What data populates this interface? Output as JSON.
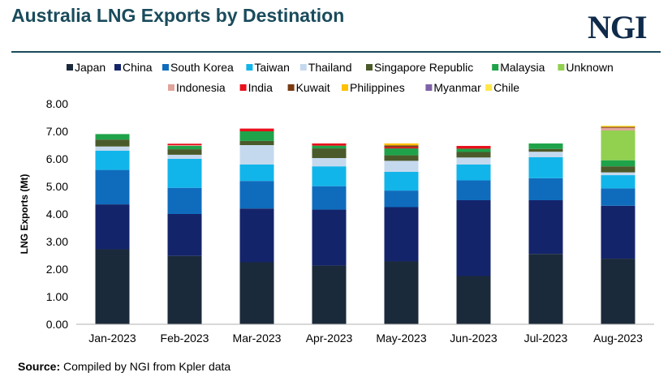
{
  "header": {
    "title": "Australia LNG Exports by Destination",
    "logo_text": "NGI"
  },
  "footer": {
    "source_label": "Source:",
    "source_text": " Compiled by NGI from Kpler data"
  },
  "chart_data": {
    "type": "bar",
    "stacked": true,
    "title": "Australia LNG Exports by Destination",
    "xlabel": "",
    "ylabel": "LNG Exports (Mt)",
    "ylim": [
      0,
      8
    ],
    "yticks": [
      "0.00",
      "1.00",
      "2.00",
      "3.00",
      "4.00",
      "5.00",
      "6.00",
      "7.00",
      "8.00"
    ],
    "grid": false,
    "legend_position": "top",
    "categories": [
      "Jan-2023",
      "Feb-2023",
      "Mar-2023",
      "Apr-2023",
      "May-2023",
      "Jun-2023",
      "Jul-2023",
      "Aug-2023"
    ],
    "series": [
      {
        "name": "Japan",
        "color": "#1b2a3a",
        "values": [
          2.72,
          2.48,
          2.25,
          2.13,
          2.28,
          1.75,
          2.55,
          2.38
        ]
      },
      {
        "name": "China",
        "color": "#14246b",
        "values": [
          1.63,
          1.52,
          1.95,
          2.03,
          1.97,
          2.75,
          1.95,
          1.92
        ]
      },
      {
        "name": "South Korea",
        "color": "#0f6cbd",
        "values": [
          1.25,
          0.95,
          1.0,
          0.85,
          0.6,
          0.72,
          0.8,
          0.63
        ]
      },
      {
        "name": "Taiwan",
        "color": "#12b5ea",
        "values": [
          0.7,
          1.05,
          0.6,
          0.72,
          0.68,
          0.58,
          0.76,
          0.48
        ]
      },
      {
        "name": "Thailand",
        "color": "#c5d9ee",
        "values": [
          0.15,
          0.15,
          0.7,
          0.3,
          0.4,
          0.25,
          0.2,
          0.1
        ]
      },
      {
        "name": "Singapore Republic",
        "color": "#4b5a2a",
        "values": [
          0.25,
          0.2,
          0.15,
          0.35,
          0.2,
          0.2,
          0.1,
          0.22
        ]
      },
      {
        "name": "Malaysia",
        "color": "#1fa34a",
        "values": [
          0.2,
          0.12,
          0.35,
          0.1,
          0.25,
          0.12,
          0.2,
          0.22
        ]
      },
      {
        "name": "Unknown",
        "color": "#92d050",
        "values": [
          0,
          0,
          0,
          0,
          0,
          0,
          0,
          1.08
        ]
      },
      {
        "name": "Indonesia",
        "color": "#e0a49c",
        "values": [
          0,
          0.03,
          0,
          0,
          0,
          0,
          0,
          0.1
        ]
      },
      {
        "name": "India",
        "color": "#e8101b",
        "values": [
          0,
          0.05,
          0.1,
          0.08,
          0.05,
          0.1,
          0,
          0
        ]
      },
      {
        "name": "Kuwait",
        "color": "#7a3a12",
        "values": [
          0,
          0,
          0,
          0,
          0.06,
          0,
          0,
          0.03
        ]
      },
      {
        "name": "Philippines",
        "color": "#ffc000",
        "values": [
          0,
          0,
          0,
          0,
          0.07,
          0,
          0,
          0.02
        ]
      },
      {
        "name": "Myanmar",
        "color": "#7f62a8",
        "values": [
          0,
          0,
          0,
          0,
          0,
          0,
          0,
          0
        ]
      },
      {
        "name": "Chile",
        "color": "#ffe74a",
        "values": [
          0,
          0,
          0,
          0,
          0,
          0,
          0,
          0.03
        ]
      }
    ]
  }
}
